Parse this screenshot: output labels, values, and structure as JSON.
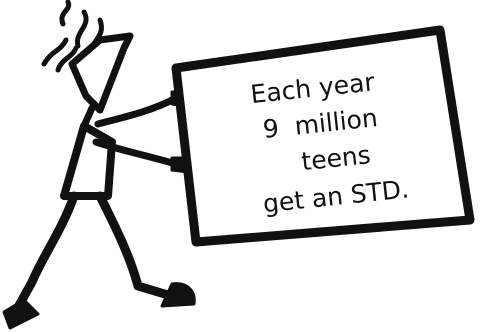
{
  "sign": {
    "line1": "Each year",
    "line2_number": "9",
    "line2_rest": "million",
    "line3": "teens",
    "line4": "get an STD."
  },
  "colors": {
    "ink": "#111111",
    "background": "#ffffff"
  }
}
